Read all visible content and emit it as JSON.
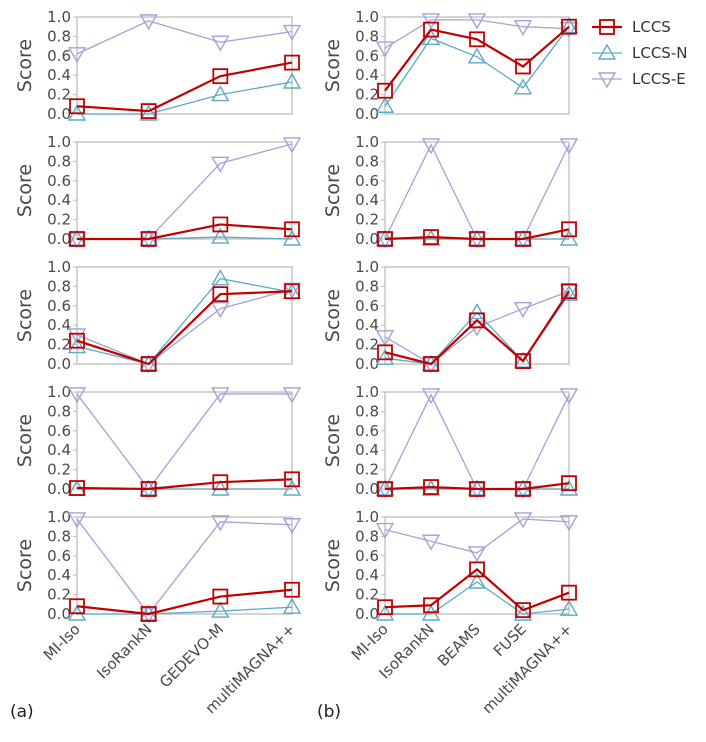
{
  "colors": {
    "LCCS": "#c00000",
    "LCCS-N": "#5ea9c6",
    "LCCS-E": "#a99fd9"
  },
  "panel_labels": [
    "(a)",
    "(b)"
  ],
  "chart_data": [
    {
      "type": "line",
      "panel": "(a)",
      "row": 1,
      "categories": [
        "MI-Iso",
        "IsoRankN",
        "GEDEVO-M",
        "multiMAGNA++"
      ],
      "ylabel": "Score",
      "ylim": [
        0,
        1
      ],
      "yticks": [
        "0.0",
        "0.2",
        "0.4",
        "0.6",
        "0.8",
        "1.0"
      ],
      "series": [
        {
          "name": "LCCS",
          "values": [
            0.08,
            0.03,
            0.39,
            0.53
          ]
        },
        {
          "name": "LCCS-N",
          "values": [
            0.0,
            0.0,
            0.2,
            0.33
          ]
        },
        {
          "name": "LCCS-E",
          "values": [
            0.62,
            0.96,
            0.74,
            0.85
          ]
        }
      ]
    },
    {
      "type": "line",
      "panel": "(a)",
      "row": 2,
      "categories": [
        "MI-Iso",
        "IsoRankN",
        "GEDEVO-M",
        "multiMAGNA++"
      ],
      "ylabel": "Score",
      "ylim": [
        0,
        1
      ],
      "yticks": [
        "0.0",
        "0.2",
        "0.4",
        "0.6",
        "0.8",
        "1.0"
      ],
      "series": [
        {
          "name": "LCCS",
          "values": [
            0.0,
            0.0,
            0.15,
            0.1
          ]
        },
        {
          "name": "LCCS-N",
          "values": [
            0.0,
            0.0,
            0.02,
            0.0
          ]
        },
        {
          "name": "LCCS-E",
          "values": [
            0.0,
            0.0,
            0.78,
            0.98
          ]
        }
      ]
    },
    {
      "type": "line",
      "panel": "(a)",
      "row": 3,
      "categories": [
        "MI-Iso",
        "IsoRankN",
        "GEDEVO-M",
        "multiMAGNA++"
      ],
      "ylabel": "Score",
      "ylim": [
        0,
        1
      ],
      "yticks": [
        "0.0",
        "0.2",
        "0.4",
        "0.6",
        "0.8",
        "1.0"
      ],
      "series": [
        {
          "name": "LCCS",
          "values": [
            0.24,
            0.0,
            0.72,
            0.75
          ]
        },
        {
          "name": "LCCS-N",
          "values": [
            0.18,
            0.0,
            0.88,
            0.74
          ]
        },
        {
          "name": "LCCS-E",
          "values": [
            0.3,
            0.0,
            0.57,
            0.77
          ]
        }
      ]
    },
    {
      "type": "line",
      "panel": "(a)",
      "row": 4,
      "categories": [
        "MI-Iso",
        "IsoRankN",
        "GEDEVO-M",
        "multiMAGNA++"
      ],
      "ylabel": "Score",
      "ylim": [
        0,
        1
      ],
      "yticks": [
        "0.0",
        "0.2",
        "0.4",
        "0.6",
        "0.8",
        "1.0"
      ],
      "series": [
        {
          "name": "LCCS",
          "values": [
            0.01,
            0.0,
            0.07,
            0.1
          ]
        },
        {
          "name": "LCCS-N",
          "values": [
            0.0,
            0.0,
            0.0,
            0.0
          ]
        },
        {
          "name": "LCCS-E",
          "values": [
            0.98,
            0.0,
            0.98,
            0.98
          ]
        }
      ]
    },
    {
      "type": "line",
      "panel": "(a)",
      "row": 5,
      "categories": [
        "MI-Iso",
        "IsoRankN",
        "GEDEVO-M",
        "multiMAGNA++"
      ],
      "ylabel": "Score",
      "ylim": [
        0,
        1
      ],
      "yticks": [
        "0.0",
        "0.2",
        "0.4",
        "0.6",
        "0.8",
        "1.0"
      ],
      "series": [
        {
          "name": "LCCS",
          "values": [
            0.08,
            0.0,
            0.18,
            0.25
          ]
        },
        {
          "name": "LCCS-N",
          "values": [
            0.0,
            0.0,
            0.03,
            0.07
          ]
        },
        {
          "name": "LCCS-E",
          "values": [
            0.98,
            0.0,
            0.95,
            0.92
          ]
        }
      ]
    },
    {
      "type": "line",
      "panel": "(b)",
      "row": 1,
      "categories": [
        "MI-Iso",
        "IsoRankN",
        "BEAMS",
        "FUSE",
        "multiMAGNA++"
      ],
      "ylabel": "Score",
      "ylim": [
        0,
        1
      ],
      "yticks": [
        "0.0",
        "0.2",
        "0.4",
        "0.6",
        "0.8",
        "1.0"
      ],
      "series": [
        {
          "name": "LCCS",
          "values": [
            0.24,
            0.87,
            0.77,
            0.49,
            0.9
          ]
        },
        {
          "name": "LCCS-N",
          "values": [
            0.08,
            0.78,
            0.59,
            0.27,
            0.9
          ]
        },
        {
          "name": "LCCS-E",
          "values": [
            0.68,
            0.97,
            0.97,
            0.9,
            0.88
          ]
        }
      ]
    },
    {
      "type": "line",
      "panel": "(b)",
      "row": 2,
      "categories": [
        "MI-Iso",
        "IsoRankN",
        "BEAMS",
        "FUSE",
        "multiMAGNA++"
      ],
      "ylabel": "Score",
      "ylim": [
        0,
        1
      ],
      "yticks": [
        "0.0",
        "0.2",
        "0.4",
        "0.6",
        "0.8",
        "1.0"
      ],
      "series": [
        {
          "name": "LCCS",
          "values": [
            0.0,
            0.02,
            0.0,
            0.0,
            0.1
          ]
        },
        {
          "name": "LCCS-N",
          "values": [
            0.0,
            0.0,
            0.0,
            0.0,
            0.0
          ]
        },
        {
          "name": "LCCS-E",
          "values": [
            0.0,
            0.97,
            0.0,
            0.0,
            0.97
          ]
        }
      ]
    },
    {
      "type": "line",
      "panel": "(b)",
      "row": 3,
      "categories": [
        "MI-Iso",
        "IsoRankN",
        "BEAMS",
        "FUSE",
        "multiMAGNA++"
      ],
      "ylabel": "Score",
      "ylim": [
        0,
        1
      ],
      "yticks": [
        "0.0",
        "0.2",
        "0.4",
        "0.6",
        "0.8",
        "1.0"
      ],
      "series": [
        {
          "name": "LCCS",
          "values": [
            0.12,
            0.0,
            0.45,
            0.03,
            0.75
          ]
        },
        {
          "name": "LCCS-N",
          "values": [
            0.06,
            0.0,
            0.53,
            0.03,
            0.72
          ]
        },
        {
          "name": "LCCS-E",
          "values": [
            0.28,
            0.0,
            0.38,
            0.57,
            0.75
          ]
        }
      ]
    },
    {
      "type": "line",
      "panel": "(b)",
      "row": 4,
      "categories": [
        "MI-Iso",
        "IsoRankN",
        "BEAMS",
        "FUSE",
        "multiMAGNA++"
      ],
      "ylabel": "Score",
      "ylim": [
        0,
        1
      ],
      "yticks": [
        "0.0",
        "0.2",
        "0.4",
        "0.6",
        "0.8",
        "1.0"
      ],
      "series": [
        {
          "name": "LCCS",
          "values": [
            0.0,
            0.02,
            0.0,
            0.0,
            0.06
          ]
        },
        {
          "name": "LCCS-N",
          "values": [
            0.0,
            0.0,
            0.0,
            0.0,
            0.0
          ]
        },
        {
          "name": "LCCS-E",
          "values": [
            0.0,
            0.97,
            0.0,
            0.0,
            0.97
          ]
        }
      ]
    },
    {
      "type": "line",
      "panel": "(b)",
      "row": 5,
      "categories": [
        "MI-Iso",
        "IsoRankN",
        "BEAMS",
        "FUSE",
        "multiMAGNA++"
      ],
      "ylabel": "Score",
      "ylim": [
        0,
        1
      ],
      "yticks": [
        "0.0",
        "0.2",
        "0.4",
        "0.6",
        "0.8",
        "1.0"
      ],
      "series": [
        {
          "name": "LCCS",
          "values": [
            0.07,
            0.09,
            0.46,
            0.04,
            0.22
          ]
        },
        {
          "name": "LCCS-N",
          "values": [
            0.0,
            0.0,
            0.33,
            0.0,
            0.05
          ]
        },
        {
          "name": "LCCS-E",
          "values": [
            0.87,
            0.75,
            0.63,
            0.98,
            0.95
          ]
        }
      ]
    }
  ],
  "legend": {
    "placement": "top-right",
    "entries": [
      {
        "name": "LCCS",
        "marker": "square"
      },
      {
        "name": "LCCS-N",
        "marker": "triangle-up"
      },
      {
        "name": "LCCS-E",
        "marker": "triangle-down"
      }
    ]
  }
}
